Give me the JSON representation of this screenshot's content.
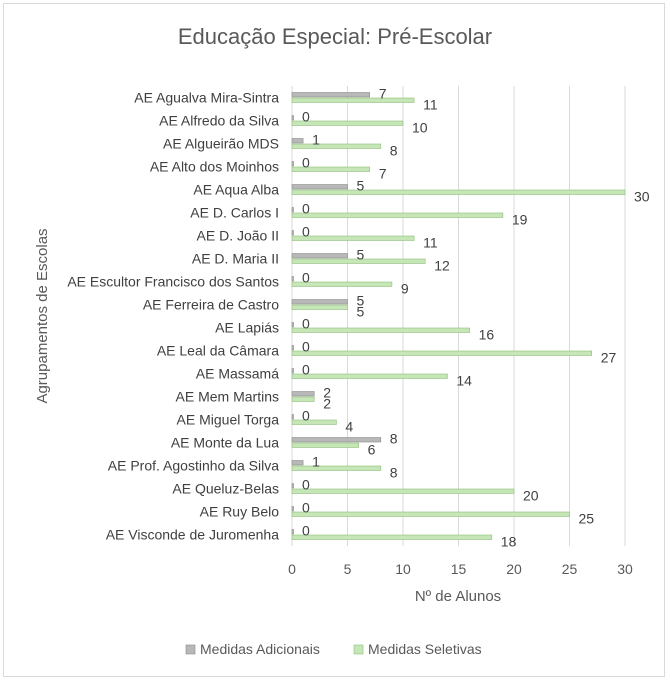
{
  "chart_data": {
    "type": "bar",
    "orientation": "horizontal",
    "title": "Educação Especial: Pré-Escolar",
    "xlabel": "Nº de Alunos",
    "ylabel": "Agrupamentos de Escolas",
    "xlim": [
      0,
      30
    ],
    "xticks": [
      "0",
      "5",
      "10",
      "15",
      "20",
      "25",
      "30"
    ],
    "grid": "vertical",
    "legend": "bottom",
    "categories": [
      "AE Agualva Mira-Sintra",
      "AE Alfredo da Silva",
      "AE Algueirão MDS",
      "AE Alto dos Moinhos",
      "AE Aqua Alba",
      "AE D. Carlos I",
      "AE D. João II",
      "AE D. Maria II",
      "AE Escultor Francisco dos Santos",
      "AE Ferreira de Castro",
      "AE Lapiás",
      "AE Leal da Câmara",
      "AE Massamá",
      "AE Mem Martins",
      "AE Miguel Torga",
      "AE Monte da Lua",
      "AE Prof. Agostinho da Silva",
      "AE Queluz-Belas",
      "AE Ruy Belo",
      "AE Visconde de Juromenha"
    ],
    "series": [
      {
        "name": "Medidas Adicionais",
        "color": "#b8b8b8",
        "values": [
          7,
          0,
          1,
          0,
          5,
          0,
          0,
          5,
          0,
          5,
          0,
          0,
          0,
          2,
          0,
          8,
          1,
          0,
          0,
          0
        ]
      },
      {
        "name": "Medidas Seletivas",
        "color": "#c6e6b8",
        "values": [
          11,
          10,
          8,
          7,
          30,
          19,
          11,
          12,
          9,
          5,
          16,
          27,
          14,
          2,
          4,
          6,
          8,
          20,
          25,
          18
        ]
      }
    ]
  }
}
